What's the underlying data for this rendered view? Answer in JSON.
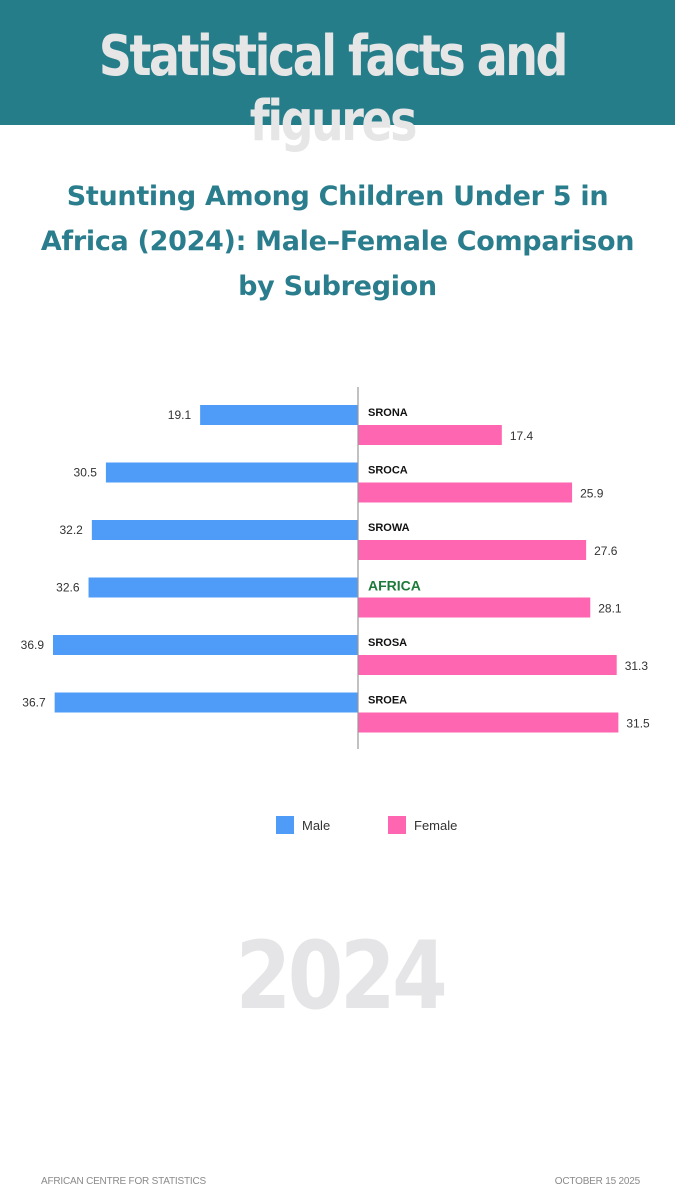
{
  "header": {
    "title": "Statistical facts and figures"
  },
  "chart_data": {
    "type": "bar",
    "orientation": "horizontal",
    "layout": "butterfly",
    "title": "Stunting Among Children Under 5 in Africa (2024): Male–Female Comparison by Subregion",
    "categories": [
      "SRONA",
      "SROCA",
      "SROWA",
      "AFRICA",
      "SROSA",
      "SROEA"
    ],
    "highlight_category": "AFRICA",
    "series": [
      {
        "name": "Male",
        "color": "#4e9bf8",
        "direction": "left",
        "values": [
          19.1,
          30.5,
          32.2,
          32.6,
          36.9,
          36.7
        ]
      },
      {
        "name": "Female",
        "color": "#ff66b2",
        "direction": "right",
        "values": [
          17.4,
          25.9,
          27.6,
          28.1,
          31.3,
          31.5
        ]
      }
    ],
    "xlim": [
      0,
      38
    ],
    "grid": false,
    "legend_position": "bottom",
    "data_labels": true
  },
  "watermark": "2024",
  "footer": {
    "organization": "AFRICAN CENTRE FOR STATISTICS",
    "date": "OCTOBER 15 2025"
  },
  "colors": {
    "header_bg": "#257d8a",
    "title": "#2a7d8c",
    "highlight_label": "#1e7a3a",
    "axis": "#999999"
  }
}
